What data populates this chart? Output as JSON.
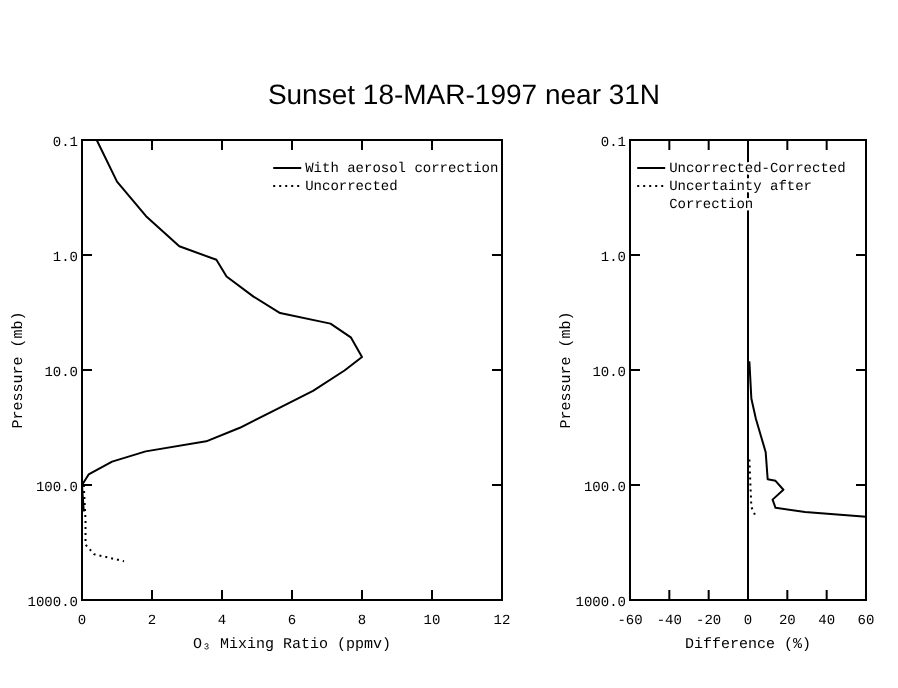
{
  "chart_data": [
    {
      "type": "line",
      "title": "Sunset 18-MAR-1997 near 31N",
      "xlabel": "O₃ Mixing Ratio (ppmv)",
      "ylabel": "Pressure (mb)",
      "log": "y",
      "legend": "top right",
      "marker": "none",
      "grid": false,
      "xlim": [
        0,
        12
      ],
      "xticks": [
        0,
        2,
        4,
        6,
        8,
        10,
        12
      ],
      "ylim": [
        1000,
        0.1
      ],
      "yticks": [
        {
          "value": 0.1,
          "label": "0.1"
        },
        {
          "value": 1,
          "label": "1.0"
        },
        {
          "value": 10,
          "label": "10.0"
        },
        {
          "value": 100,
          "label": "100.0"
        },
        {
          "value": 1000,
          "label": "1000.0"
        }
      ],
      "series": [
        {
          "name": "With aerosol correction",
          "color": "#000000",
          "line_style": "solid",
          "x": [
            0.42,
            1.0,
            1.83,
            2.78,
            3.84,
            4.13,
            4.9,
            5.66,
            7.1,
            7.68,
            8.0,
            7.5,
            6.6,
            5.47,
            4.51,
            3.55,
            1.82,
            0.86,
            0.19,
            0,
            0.05
          ],
          "values": [
            0.1,
            0.23,
            0.46,
            0.84,
            1.1,
            1.54,
            2.3,
            3.2,
            3.95,
            5.2,
            7.7,
            10.1,
            15.2,
            22.7,
            31.8,
            41.7,
            51,
            62.6,
            81,
            100,
            170
          ]
        },
        {
          "name": "Uncorrected",
          "color": "#000000",
          "line_style": "dotted",
          "x": [
            0.05,
            0.1,
            0.1,
            0.35,
            1.2
          ],
          "values": [
            100,
            200,
            330,
            400,
            460
          ]
        }
      ]
    },
    {
      "type": "line",
      "xlabel": "Difference (%)",
      "ylabel": "Pressure (mb)",
      "log": "y",
      "legend": "top right",
      "marker": "none",
      "grid": false,
      "xlim": [
        -60,
        60
      ],
      "xticks": [
        -60,
        -40,
        -20,
        0,
        20,
        40,
        60
      ],
      "ylim": [
        1000,
        0.1
      ],
      "yticks": [
        {
          "value": 0.1,
          "label": "0.1"
        },
        {
          "value": 1,
          "label": "1.0"
        },
        {
          "value": 10,
          "label": "10.0"
        },
        {
          "value": 100,
          "label": "100.0"
        },
        {
          "value": 1000,
          "label": "1000.0"
        }
      ],
      "ref_lines": [
        {
          "axis": "x",
          "value": 0,
          "color": "#000000"
        }
      ],
      "series": [
        {
          "name": "Uncorrected-Corrected",
          "color": "#000000",
          "line_style": "solid",
          "x": [
            0.7,
            1.7,
            4,
            9,
            10,
            14,
            18,
            12.5,
            14,
            29,
            60
          ],
          "values": [
            8.4,
            17.7,
            26.5,
            52,
            89,
            92,
            110,
            134,
            158,
            172,
            189
          ]
        },
        {
          "name": "Uncertainty after Correction",
          "color": "#000000",
          "line_style": "dotted",
          "x": [
            0.7,
            1.7,
            4
          ],
          "values": [
            60,
            155,
            189
          ]
        }
      ]
    }
  ]
}
